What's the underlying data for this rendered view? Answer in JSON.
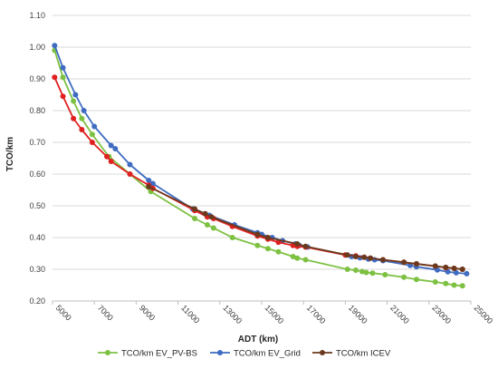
{
  "chart_data": {
    "type": "line",
    "title": "",
    "xlabel": "ADT (km)",
    "ylabel": "TCO/km",
    "xlim": [
      5000,
      25000
    ],
    "ylim": [
      0.2,
      1.1
    ],
    "xticks": [
      5000,
      7000,
      9000,
      11000,
      13000,
      15000,
      17000,
      19000,
      21000,
      23000,
      25000
    ],
    "yticks": [
      0.2,
      0.3,
      0.4,
      0.5,
      0.6,
      0.7,
      0.8,
      0.9,
      1.0,
      1.1
    ],
    "xtick_labels": [
      "5000",
      "7000",
      "9000",
      "11000",
      "13000",
      "15000",
      "17000",
      "19000",
      "21000",
      "23000",
      "25000"
    ],
    "ytick_labels": [
      "0.20",
      "0.30",
      "0.40",
      "0.50",
      "0.60",
      "0.70",
      "0.80",
      "0.90",
      "1.00",
      "1.10"
    ],
    "grid": "horizontal",
    "legend_position": "bottom",
    "series": [
      {
        "name": "TCO/km  EV_PV-BS",
        "color": "#7DC142",
        "marker": "circle",
        "x": [
          5100,
          5500,
          6000,
          6400,
          6900,
          7700,
          8700,
          9700,
          11800,
          12400,
          12700,
          13600,
          14800,
          15300,
          15800,
          16500,
          16700,
          17100,
          19100,
          19500,
          19800,
          20000,
          20300,
          20900,
          21800,
          22400,
          23300,
          23800,
          24200,
          24600
        ],
        "y": [
          0.99,
          0.905,
          0.83,
          0.775,
          0.725,
          0.655,
          0.6,
          0.545,
          0.46,
          0.44,
          0.43,
          0.4,
          0.375,
          0.365,
          0.355,
          0.34,
          0.335,
          0.33,
          0.3,
          0.297,
          0.293,
          0.29,
          0.288,
          0.283,
          0.275,
          0.268,
          0.26,
          0.255,
          0.25,
          0.248
        ]
      },
      {
        "name": "TCO/km  EV_Grid",
        "color": "#3F6CC1",
        "marker": "circle",
        "x": [
          5100,
          5500,
          6100,
          6500,
          7000,
          7800,
          8000,
          8700,
          9600,
          9800,
          11700,
          12300,
          12500,
          13700,
          14800,
          15000,
          15500,
          16000,
          16600,
          16800,
          17200,
          19000,
          19300,
          19700,
          20100,
          20400,
          20800,
          22100,
          22400,
          23400,
          23900,
          24300,
          24800
        ],
        "y": [
          1.005,
          0.935,
          0.85,
          0.8,
          0.75,
          0.69,
          0.68,
          0.63,
          0.58,
          0.57,
          0.49,
          0.475,
          0.47,
          0.44,
          0.415,
          0.41,
          0.4,
          0.39,
          0.38,
          0.375,
          0.37,
          0.345,
          0.34,
          0.336,
          0.332,
          0.33,
          0.327,
          0.312,
          0.308,
          0.298,
          0.292,
          0.289,
          0.286
        ]
      },
      {
        "name": "TCO/km  ICEV",
        "color": "#E02020",
        "marker": "circle",
        "x": [
          5100,
          5500,
          6000,
          6400,
          6900,
          7600,
          7800,
          8700,
          9600,
          9800,
          11800,
          12400,
          12700,
          13600,
          14800,
          15300,
          15800,
          16500,
          16700,
          17100,
          19000,
          19500,
          19900,
          20200,
          20800,
          21800,
          22400,
          23300,
          23800,
          24200,
          24600
        ],
        "y": [
          0.905,
          0.845,
          0.775,
          0.74,
          0.7,
          0.655,
          0.64,
          0.6,
          0.565,
          0.555,
          0.485,
          0.465,
          0.46,
          0.435,
          0.405,
          0.395,
          0.385,
          0.375,
          0.372,
          0.37,
          0.345,
          0.342,
          0.338,
          0.335,
          0.33,
          0.322,
          0.317,
          0.31,
          0.305,
          0.303,
          0.3
        ]
      },
      {
        "name": "",
        "color": "#6B3A1E",
        "marker": "circle",
        "x": [
          9600,
          11800,
          12300,
          12600,
          14800,
          15300,
          16700,
          17100,
          19100,
          19500,
          19900,
          20200,
          20800,
          21800,
          22400,
          23300,
          23800,
          24200,
          24600
        ],
        "y": [
          0.56,
          0.49,
          0.475,
          0.465,
          0.41,
          0.4,
          0.38,
          0.372,
          0.345,
          0.34,
          0.338,
          0.335,
          0.33,
          0.322,
          0.317,
          0.31,
          0.306,
          0.303,
          0.3
        ]
      }
    ],
    "legend_entries": [
      {
        "label": "TCO/km  EV_PV-BS",
        "color": "#7DC142"
      },
      {
        "label": "TCO/km  EV_Grid",
        "color": "#3F6CC1"
      },
      {
        "label": "TCO/km  ICEV",
        "color": "#6B3A1E"
      }
    ]
  }
}
